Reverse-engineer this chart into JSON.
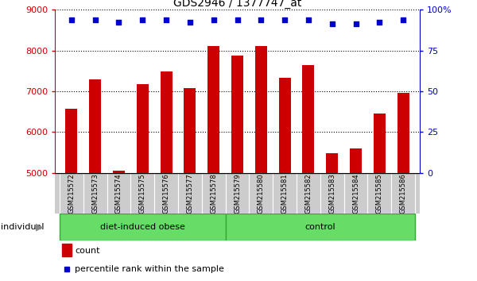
{
  "title": "GDS2946 / 1377747_at",
  "categories": [
    "GSM215572",
    "GSM215573",
    "GSM215574",
    "GSM215575",
    "GSM215576",
    "GSM215577",
    "GSM215578",
    "GSM215579",
    "GSM215580",
    "GSM215581",
    "GSM215582",
    "GSM215583",
    "GSM215584",
    "GSM215585",
    "GSM215586"
  ],
  "bar_values": [
    6580,
    7300,
    5060,
    7180,
    7480,
    7080,
    8120,
    7870,
    8120,
    7330,
    7650,
    5490,
    5590,
    6450,
    6970
  ],
  "pct_dot_y": [
    8750,
    8750,
    8690,
    8750,
    8750,
    8690,
    8750,
    8750,
    8750,
    8750,
    8750,
    8660,
    8660,
    8690,
    8750
  ],
  "bar_color": "#cc0000",
  "percentile_color": "#0000cc",
  "ylim": [
    5000,
    9000
  ],
  "yticks_left": [
    5000,
    6000,
    7000,
    8000,
    9000
  ],
  "yticks_right": [
    0,
    25,
    50,
    75,
    100
  ],
  "yticks_right_pos": [
    5000,
    6000,
    7000,
    8000,
    9000
  ],
  "grid_values": [
    6000,
    7000,
    8000
  ],
  "group1_label": "diet-induced obese",
  "group1_count": 7,
  "group2_label": "control",
  "group2_count": 8,
  "group_bg_color": "#66dd66",
  "group_border_color": "#33aa33",
  "tick_bg_color": "#cccccc",
  "tick_border_color": "#aaaaaa",
  "legend_count_label": "count",
  "legend_percentile_label": "percentile rank within the sample",
  "individual_label": "individual",
  "background_color": "#ffffff",
  "left_tick_color": "#cc0000",
  "right_tick_color": "#0000cc",
  "title_fontsize": 10,
  "bar_width": 0.5
}
